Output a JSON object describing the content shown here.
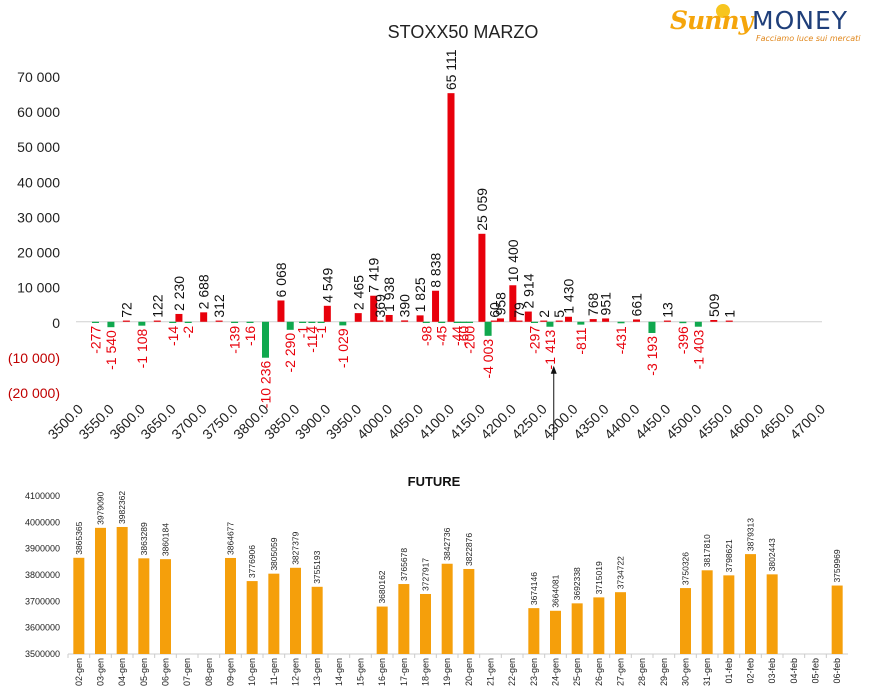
{
  "logo": {
    "brand_left": "Sunny",
    "brand_right": "MONEY",
    "tagline": "Facciamo luce sui mercati"
  },
  "colors": {
    "positive": "#e8000b",
    "negative": "#10a84e",
    "future_bar": "#f59f0b",
    "neg_axis_label": "#c00000",
    "future_label": "#222222"
  },
  "chart_data": [
    {
      "type": "bar",
      "title": "STOXX50 MARZO",
      "y_tick_labels": [
        "(20 000)",
        "(10 000)",
        "0",
        "10 000",
        "20 000",
        "30 000",
        "40 000",
        "50 000",
        "60 000",
        "70 000"
      ],
      "y_tick_values": [
        -20000,
        -10000,
        0,
        10000,
        20000,
        30000,
        40000,
        50000,
        60000,
        70000
      ],
      "ylim": [
        -20000,
        70000
      ],
      "xlim": [
        3500,
        4700
      ],
      "x_tick_labels": [
        "3500.0",
        "3550.0",
        "3600.0",
        "3650.0",
        "3700.0",
        "3750.0",
        "3800.0",
        "3850.0",
        "3900.0",
        "3950.0",
        "4000.0",
        "4050.0",
        "4100.0",
        "4150.0",
        "4200.0",
        "4250.0",
        "4300.0",
        "4350.0",
        "4400.0",
        "4450.0",
        "4500.0",
        "4550.0",
        "4600.0",
        "4650.0",
        "4700.0"
      ],
      "x_tick_values": [
        3500,
        3550,
        3600,
        3650,
        3700,
        3750,
        3800,
        3850,
        3900,
        3950,
        4000,
        4050,
        4100,
        4150,
        4200,
        4250,
        4300,
        4350,
        4400,
        4450,
        4500,
        4550,
        4600,
        4650,
        4700
      ],
      "series": [
        {
          "values": [
            {
              "strike": 3525,
              "value": -277,
              "label": "-277"
            },
            {
              "strike": 3550,
              "value": -1540,
              "label": "-1 540"
            },
            {
              "strike": 3575,
              "value": 72,
              "label": "72"
            },
            {
              "strike": 3600,
              "value": -1108,
              "label": "-1 108"
            },
            {
              "strike": 3625,
              "value": 122,
              "label": "122"
            },
            {
              "strike": 3650,
              "value": -14,
              "label": "-14"
            },
            {
              "strike": 3660,
              "value": 2230,
              "label": "2 230"
            },
            {
              "strike": 3675,
              "value": -2,
              "label": "-2"
            },
            {
              "strike": 3700,
              "value": 2688,
              "label": "2 688"
            },
            {
              "strike": 3725,
              "value": 312,
              "label": "312"
            },
            {
              "strike": 3750,
              "value": -139,
              "label": "-139"
            },
            {
              "strike": 3775,
              "value": -16,
              "label": "-16"
            },
            {
              "strike": 3800,
              "value": -10236,
              "label": "-10 236"
            },
            {
              "strike": 3825,
              "value": 6068,
              "label": "6 068"
            },
            {
              "strike": 3840,
              "value": -2290,
              "label": "-2 290"
            },
            {
              "strike": 3860,
              "value": -1,
              "label": "-1"
            },
            {
              "strike": 3875,
              "value": -114,
              "label": "-114"
            },
            {
              "strike": 3890,
              "value": -1,
              "label": "-1"
            },
            {
              "strike": 3900,
              "value": 4549,
              "label": "4 549"
            },
            {
              "strike": 3925,
              "value": -1029,
              "label": "-1 029"
            },
            {
              "strike": 3950,
              "value": 2465,
              "label": "2 465"
            },
            {
              "strike": 3975,
              "value": 7419,
              "label": "7 419"
            },
            {
              "strike": 3985,
              "value": 369,
              "label": "369"
            },
            {
              "strike": 4000,
              "value": 1938,
              "label": "1 938"
            },
            {
              "strike": 4025,
              "value": 390,
              "label": "390"
            },
            {
              "strike": 4050,
              "value": 1825,
              "label": "1 825"
            },
            {
              "strike": 4060,
              "value": -98,
              "label": "-98"
            },
            {
              "strike": 4075,
              "value": 8838,
              "label": "8 838"
            },
            {
              "strike": 4085,
              "value": -45,
              "label": "-45"
            },
            {
              "strike": 4100,
              "value": 65111,
              "label": "65 111"
            },
            {
              "strike": 4110,
              "value": -44,
              "label": "-44"
            },
            {
              "strike": 4120,
              "value": -60,
              "label": "-60"
            },
            {
              "strike": 4130,
              "value": -200,
              "label": "-200"
            },
            {
              "strike": 4150,
              "value": 25059,
              "label": "25 059"
            },
            {
              "strike": 4160,
              "value": -4003,
              "label": "-4 003"
            },
            {
              "strike": 4170,
              "value": 60,
              "label": "60"
            },
            {
              "strike": 4180,
              "value": 958,
              "label": "958"
            },
            {
              "strike": 4200,
              "value": 10400,
              "label": "10 400"
            },
            {
              "strike": 4210,
              "value": 79,
              "label": "79"
            },
            {
              "strike": 4225,
              "value": 2914,
              "label": "2 914"
            },
            {
              "strike": 4235,
              "value": -297,
              "label": "-297"
            },
            {
              "strike": 4250,
              "value": 2,
              "label": "2"
            },
            {
              "strike": 4260,
              "value": -1413,
              "label": "-1 413"
            },
            {
              "strike": 4275,
              "value": 5,
              "label": "5"
            },
            {
              "strike": 4290,
              "value": 1430,
              "label": "1 430"
            },
            {
              "strike": 4310,
              "value": -811,
              "label": "-811"
            },
            {
              "strike": 4330,
              "value": 768,
              "label": "768"
            },
            {
              "strike": 4350,
              "value": 951,
              "label": "951"
            },
            {
              "strike": 4375,
              "value": -431,
              "label": "-431"
            },
            {
              "strike": 4400,
              "value": 661,
              "label": "661"
            },
            {
              "strike": 4425,
              "value": -3193,
              "label": "-3 193"
            },
            {
              "strike": 4450,
              "value": 13,
              "label": "13"
            },
            {
              "strike": 4475,
              "value": -396,
              "label": "-396"
            },
            {
              "strike": 4500,
              "value": -1403,
              "label": "-1 403"
            },
            {
              "strike": 4525,
              "value": 509,
              "label": "509"
            },
            {
              "strike": 4550,
              "value": 1,
              "label": "1"
            }
          ]
        }
      ],
      "current_level_marker": {
        "strike": 4250
      }
    },
    {
      "type": "bar",
      "title": "FUTURE",
      "ylim": [
        3500000,
        4100000
      ],
      "y_tick_labels": [
        "3500000",
        "3600000",
        "3700000",
        "3800000",
        "3900000",
        "4000000",
        "4100000"
      ],
      "y_tick_values": [
        3500000,
        3600000,
        3700000,
        3800000,
        3900000,
        4000000,
        4100000
      ],
      "categories": [
        "02-gen",
        "03-gen",
        "04-gen",
        "05-gen",
        "06-gen",
        "07-gen",
        "08-gen",
        "09-gen",
        "10-gen",
        "11-gen",
        "12-gen",
        "13-gen",
        "14-gen",
        "15-gen",
        "16-gen",
        "17-gen",
        "18-gen",
        "19-gen",
        "20-gen",
        "21-gen",
        "22-gen",
        "23-gen",
        "24-gen",
        "25-gen",
        "26-gen",
        "27-gen",
        "28-gen",
        "29-gen",
        "30-gen",
        "31-gen",
        "01-feb",
        "02-feb",
        "03-feb",
        "04-feb",
        "05-feb",
        "06-feb"
      ],
      "values": [
        3865365,
        3979090,
        3982362,
        3863289,
        3860184,
        null,
        null,
        3864677,
        3776906,
        3805059,
        3827379,
        3755193,
        null,
        null,
        3680162,
        3765678,
        3727917,
        3842736,
        3822876,
        null,
        null,
        3674146,
        3664081,
        3692338,
        3715019,
        3734722,
        null,
        null,
        3750326,
        3817810,
        3798621,
        3879313,
        3802443,
        null,
        null,
        3759969
      ]
    }
  ]
}
